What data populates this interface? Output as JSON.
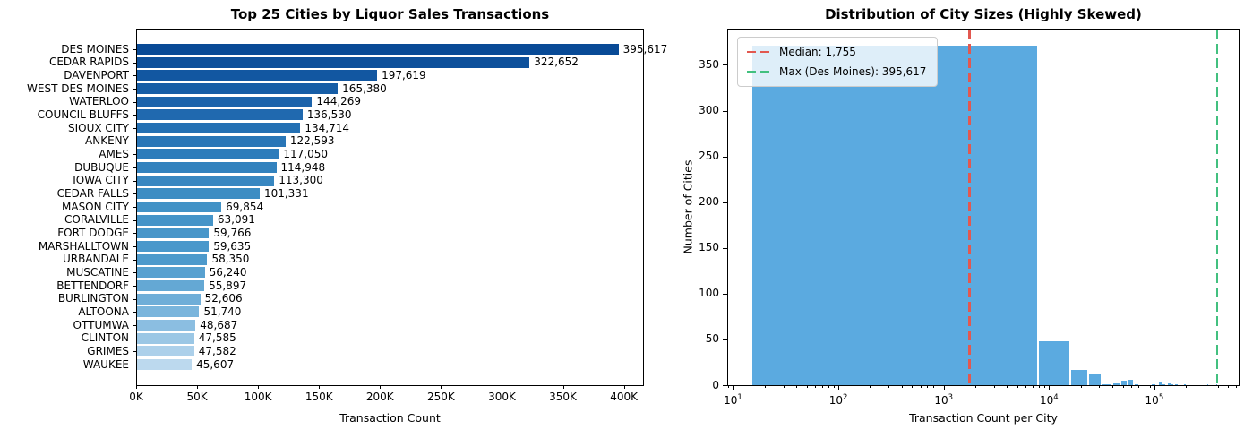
{
  "figure": {
    "background": "#ffffff"
  },
  "chart_data": [
    {
      "type": "bar",
      "orientation": "horizontal",
      "title": "Top 25 Cities by Liquor Sales Transactions",
      "xlabel": "Transaction Count",
      "categories": [
        "DES MOINES",
        "CEDAR RAPIDS",
        "DAVENPORT",
        "WEST DES MOINES",
        "WATERLOO",
        "COUNCIL BLUFFS",
        "SIOUX CITY",
        "ANKENY",
        "AMES",
        "DUBUQUE",
        "IOWA CITY",
        "CEDAR FALLS",
        "MASON CITY",
        "CORALVILLE",
        "FORT DODGE",
        "MARSHALLTOWN",
        "URBANDALE",
        "MUSCATINE",
        "BETTENDORF",
        "BURLINGTON",
        "ALTOONA",
        "OTTUMWA",
        "CLINTON",
        "GRIMES",
        "WAUKEE"
      ],
      "values": [
        395617,
        322652,
        197619,
        165380,
        144269,
        136530,
        134714,
        122593,
        117050,
        114948,
        113300,
        101331,
        69854,
        63091,
        59766,
        59635,
        58350,
        56240,
        55897,
        52606,
        51740,
        48687,
        47585,
        47582,
        45607
      ],
      "value_labels": [
        "395,617",
        "322,652",
        "197,619",
        "165,380",
        "144,269",
        "136,530",
        "134,714",
        "122,593",
        "117,050",
        "114,948",
        "113,300",
        "101,331",
        "69,854",
        "63,091",
        "59,766",
        "59,635",
        "58,350",
        "56,240",
        "55,897",
        "52,606",
        "51,740",
        "48,687",
        "47,585",
        "47,582",
        "45,607"
      ],
      "xlim": [
        0,
        415700
      ],
      "x_tick_values": [
        0,
        50000,
        100000,
        150000,
        200000,
        250000,
        300000,
        350000,
        400000
      ],
      "x_tick_labels": [
        "0K",
        "50K",
        "100K",
        "150K",
        "200K",
        "250K",
        "300K",
        "350K",
        "400K"
      ],
      "bar_color_ramp": [
        "#084a96",
        "#1b63ab",
        "#2d7cbb",
        "#4292c6",
        "#4d9acc",
        "#7ab5dc",
        "#bcd9ee"
      ],
      "grid": false
    },
    {
      "type": "histogram",
      "title": "Distribution of City Sizes (Highly Skewed)",
      "xlabel": "Transaction Count per City",
      "ylabel": "Number of Cities",
      "x_scale": "log",
      "x_log_range": [
        0.945,
        5.8
      ],
      "x_tick_exponents": [
        1,
        2,
        3,
        4,
        5
      ],
      "ylim": [
        0,
        389.6
      ],
      "y_tick_values": [
        0,
        50,
        100,
        150,
        200,
        250,
        300,
        350
      ],
      "bar_color": "#5baae0",
      "bin_start": 15,
      "bin_width": 7912.04,
      "bins": [
        {
          "index": 0,
          "count": 371
        },
        {
          "index": 1,
          "count": 48
        },
        {
          "index": 2,
          "count": 17
        },
        {
          "index": 3,
          "count": 12
        },
        {
          "index": 4,
          "count": 1
        },
        {
          "index": 5,
          "count": 2
        },
        {
          "index": 6,
          "count": 5
        },
        {
          "index": 7,
          "count": 6
        },
        {
          "index": 8,
          "count": 1
        },
        {
          "index": 12,
          "count": 1
        },
        {
          "index": 14,
          "count": 3
        },
        {
          "index": 15,
          "count": 1
        },
        {
          "index": 17,
          "count": 2
        },
        {
          "index": 18,
          "count": 1
        },
        {
          "index": 20,
          "count": 1
        },
        {
          "index": 24,
          "count": 1
        },
        {
          "index": 40,
          "count": 1
        },
        {
          "index": 49,
          "count": 1
        }
      ],
      "vlines": [
        {
          "id": "median",
          "label": "Median: 1,755",
          "value": 1755,
          "color": "#e25850"
        },
        {
          "id": "max",
          "label": "Max (Des Moines): 395,617",
          "value": 395617,
          "color": "#42c07f"
        }
      ],
      "legend_position": "upper left",
      "grid": false
    }
  ]
}
